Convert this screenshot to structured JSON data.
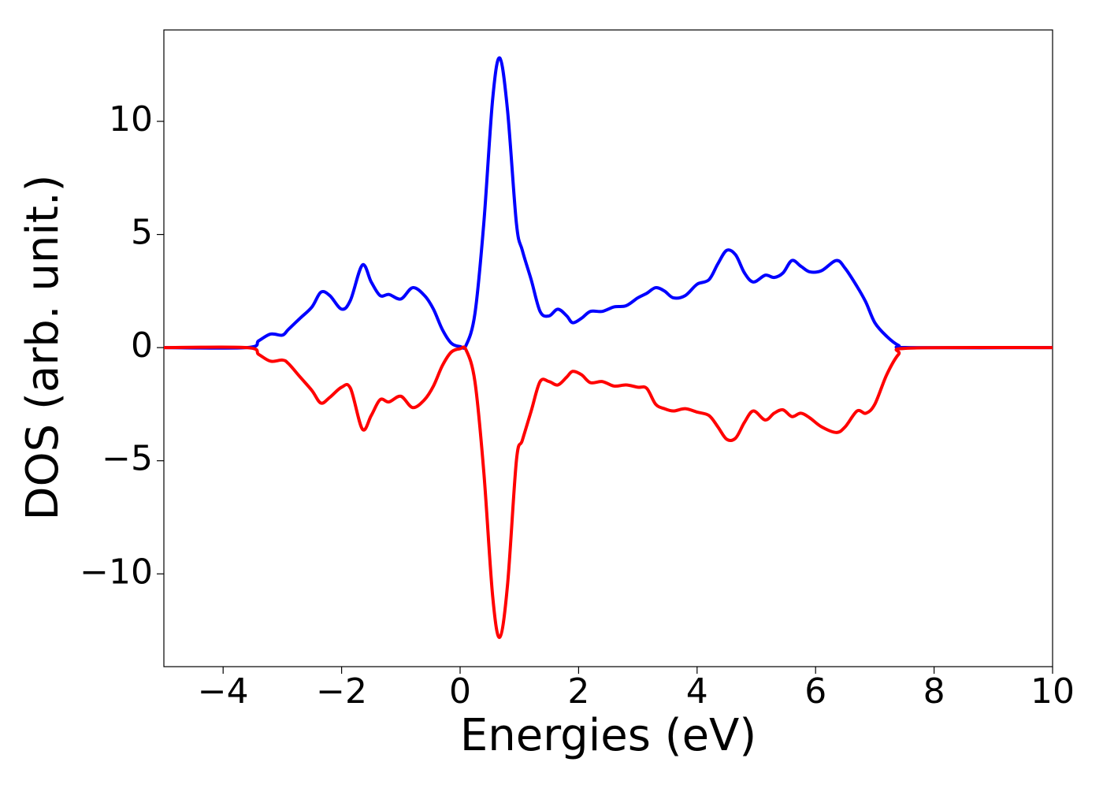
{
  "chart_data": {
    "type": "line",
    "xlabel": "Energies (eV)",
    "ylabel": "DOS (arb. unit.)",
    "x": [
      -5,
      -3.6,
      -3.4,
      -3.2,
      -3.0,
      -2.9,
      -2.7,
      -2.5,
      -2.35,
      -2.2,
      -2.0,
      -1.85,
      -1.65,
      -1.5,
      -1.35,
      -1.2,
      -1.0,
      -0.8,
      -0.6,
      -0.45,
      -0.3,
      -0.15,
      0,
      0.1,
      0.25,
      0.4,
      0.55,
      0.67,
      0.8,
      0.95,
      1.05,
      1.2,
      1.35,
      1.5,
      1.65,
      1.8,
      1.9,
      2.05,
      2.2,
      2.4,
      2.6,
      2.8,
      3.0,
      3.15,
      3.3,
      3.45,
      3.6,
      3.8,
      4.0,
      4.2,
      4.35,
      4.5,
      4.65,
      4.8,
      4.95,
      5.15,
      5.3,
      5.45,
      5.6,
      5.75,
      5.9,
      6.1,
      6.35,
      6.5,
      6.7,
      6.85,
      7.0,
      7.2,
      7.4,
      7.6,
      10
    ],
    "series": [
      {
        "color": "#0000ff",
        "values": [
          0,
          0,
          0.3,
          0.6,
          0.55,
          0.8,
          1.3,
          1.8,
          2.45,
          2.3,
          1.7,
          2.1,
          3.65,
          2.9,
          2.3,
          2.35,
          2.15,
          2.65,
          2.3,
          1.7,
          0.8,
          0.2,
          0.05,
          0.1,
          1.5,
          5.5,
          11,
          12.8,
          10.5,
          5.5,
          4.3,
          3.0,
          1.6,
          1.4,
          1.7,
          1.4,
          1.1,
          1.3,
          1.6,
          1.6,
          1.8,
          1.85,
          2.2,
          2.4,
          2.65,
          2.5,
          2.2,
          2.3,
          2.8,
          3.0,
          3.7,
          4.3,
          4.1,
          3.3,
          2.9,
          3.2,
          3.1,
          3.3,
          3.85,
          3.6,
          3.35,
          3.4,
          3.85,
          3.5,
          2.7,
          2.0,
          1.1,
          0.5,
          0.1,
          0,
          0
        ]
      },
      {
        "color": "#ff0000",
        "values": [
          0,
          0,
          -0.3,
          -0.6,
          -0.55,
          -0.7,
          -1.3,
          -1.9,
          -2.45,
          -2.2,
          -1.75,
          -1.8,
          -3.6,
          -3.0,
          -2.3,
          -2.4,
          -2.15,
          -2.65,
          -2.3,
          -1.7,
          -0.8,
          -0.2,
          -0.05,
          -0.1,
          -1.5,
          -5.5,
          -11,
          -12.8,
          -10.5,
          -5,
          -4.1,
          -2.8,
          -1.5,
          -1.5,
          -1.65,
          -1.3,
          -1.05,
          -1.2,
          -1.55,
          -1.5,
          -1.7,
          -1.65,
          -1.75,
          -1.8,
          -2.5,
          -2.7,
          -2.8,
          -2.7,
          -2.85,
          -3.0,
          -3.5,
          -4.05,
          -4.0,
          -3.3,
          -2.8,
          -3.2,
          -2.9,
          -2.75,
          -3.05,
          -2.9,
          -3.1,
          -3.5,
          -3.75,
          -3.5,
          -2.8,
          -2.9,
          -2.5,
          -1.2,
          -0.3,
          -0.02,
          0
        ]
      }
    ],
    "xlim": [
      -5,
      10
    ],
    "xticks": [
      {
        "value": -4,
        "label": "−4"
      },
      {
        "value": -2,
        "label": "−2"
      },
      0,
      2,
      4,
      6,
      8,
      10
    ],
    "ylim": [
      -14.1,
      14.04
    ],
    "yticks": [
      {
        "value": -10,
        "label": "−10"
      },
      {
        "value": -5,
        "label": "−5"
      },
      0,
      5,
      10
    ]
  }
}
